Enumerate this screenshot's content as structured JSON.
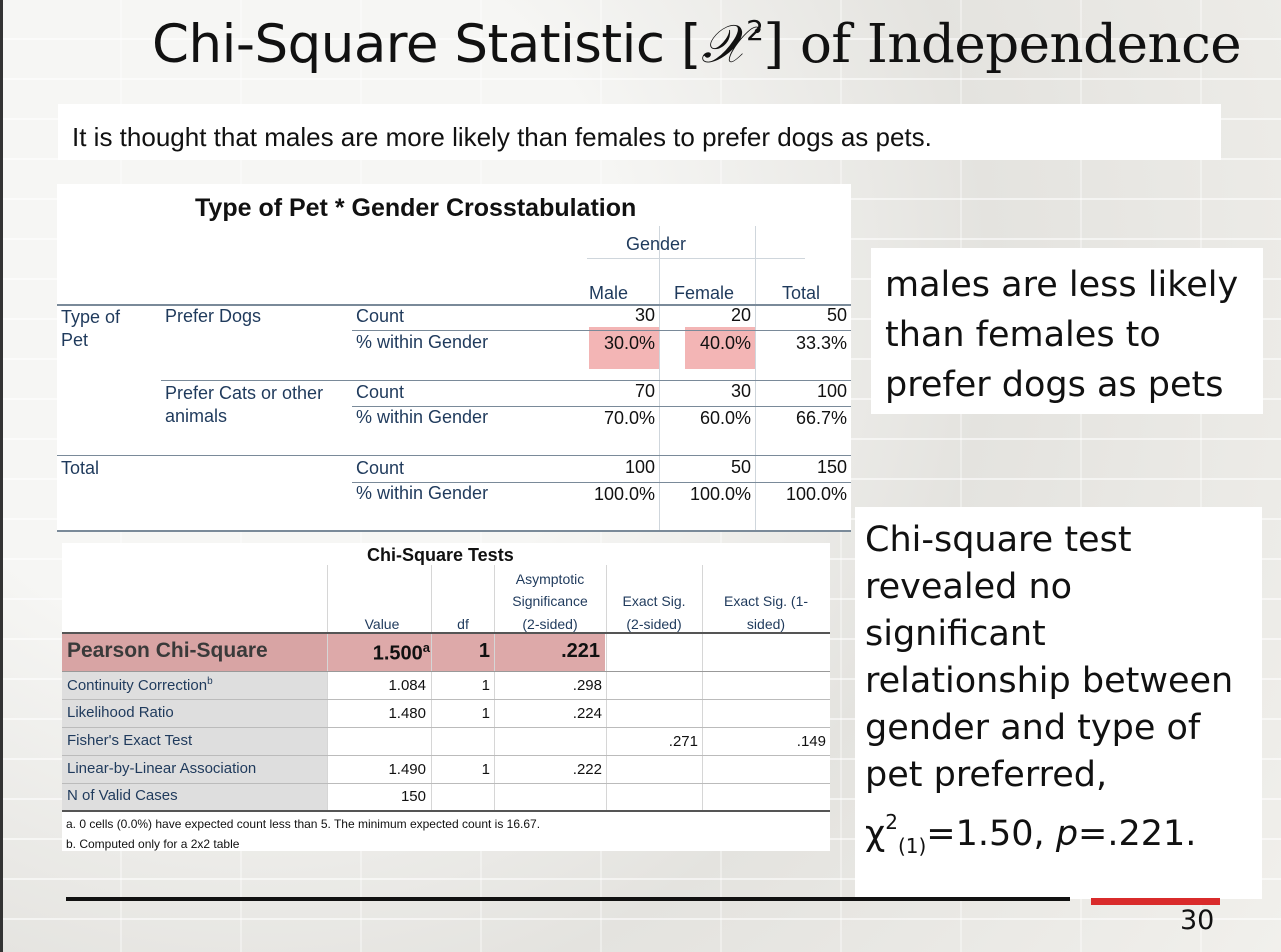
{
  "slide": {
    "title_main": "Chi-Square Statistic [",
    "title_symbol": "𝒳",
    "title_sup": "2",
    "title_end": "] of Independence",
    "intro": "It is thought that males are more likely than females to prefer dogs as pets.",
    "note": "males are less likely than females to prefer dogs as pets",
    "result_1": "Chi-square test revealed no significant relationship between gender and type of pet preferred, ",
    "result_chi": "χ",
    "result_sup": "2",
    "result_sub": "(1)",
    "result_stat": "=1.50, ",
    "result_p": "p",
    "result_pval": "=.221.",
    "page_number": "30",
    "accent_color": "#d92b2b"
  },
  "crosstab": {
    "title": "Type of Pet * Gender Crosstabulation",
    "gender_header": "Gender",
    "columns": [
      "Male",
      "Female",
      "Total"
    ],
    "row_group_label_1": "Type of",
    "row_group_label_2": "Pet",
    "rows": [
      {
        "label": "Prefer Dogs",
        "label2": "",
        "stat1": "Count",
        "vals1": [
          "30",
          "20",
          "50"
        ],
        "stat2": "% within Gender",
        "vals2": [
          "30.0%",
          "40.0%",
          "33.3%"
        ]
      },
      {
        "label": "Prefer Cats or other",
        "label2": "animals",
        "stat1": "Count",
        "vals1": [
          "70",
          "30",
          "100"
        ],
        "stat2": "% within Gender",
        "vals2": [
          "70.0%",
          "60.0%",
          "66.7%"
        ]
      },
      {
        "label": "Total",
        "label2": "",
        "stat1": "Count",
        "vals1": [
          "100",
          "50",
          "150"
        ],
        "stat2": "% within Gender",
        "vals2": [
          "100.0%",
          "100.0%",
          "100.0%"
        ]
      }
    ],
    "highlight_color": "#f3b5b5"
  },
  "chi_tests": {
    "title": "Chi-Square Tests",
    "headers": [
      "Value",
      "df",
      "Asymptotic",
      "Significance",
      "(2-sided)",
      "Exact Sig.",
      "(2-sided)",
      "Exact Sig. (1-",
      "sided)"
    ],
    "rows": [
      {
        "label": "Pearson Chi-Square",
        "value": "1.500",
        "value_sup": "a",
        "df": "1",
        "asym": ".221",
        "exact2": "",
        "exact1": ""
      },
      {
        "label": "Continuity Correction",
        "label_sup": "b",
        "value": "1.084",
        "df": "1",
        "asym": ".298",
        "exact2": "",
        "exact1": ""
      },
      {
        "label": "Likelihood Ratio",
        "value": "1.480",
        "df": "1",
        "asym": ".224",
        "exact2": "",
        "exact1": ""
      },
      {
        "label": "Fisher's Exact Test",
        "value": "",
        "df": "",
        "asym": "",
        "exact2": ".271",
        "exact1": ".149"
      },
      {
        "label": "Linear-by-Linear Association",
        "value": "1.490",
        "df": "1",
        "asym": ".222",
        "exact2": "",
        "exact1": ""
      },
      {
        "label": "N of Valid Cases",
        "value": "150",
        "df": "",
        "asym": "",
        "exact2": "",
        "exact1": ""
      }
    ],
    "footnote_a": "a. 0 cells (0.0%) have expected count less than 5. The minimum expected count is 16.67.",
    "footnote_b": "b. Computed only for a 2x2 table"
  }
}
